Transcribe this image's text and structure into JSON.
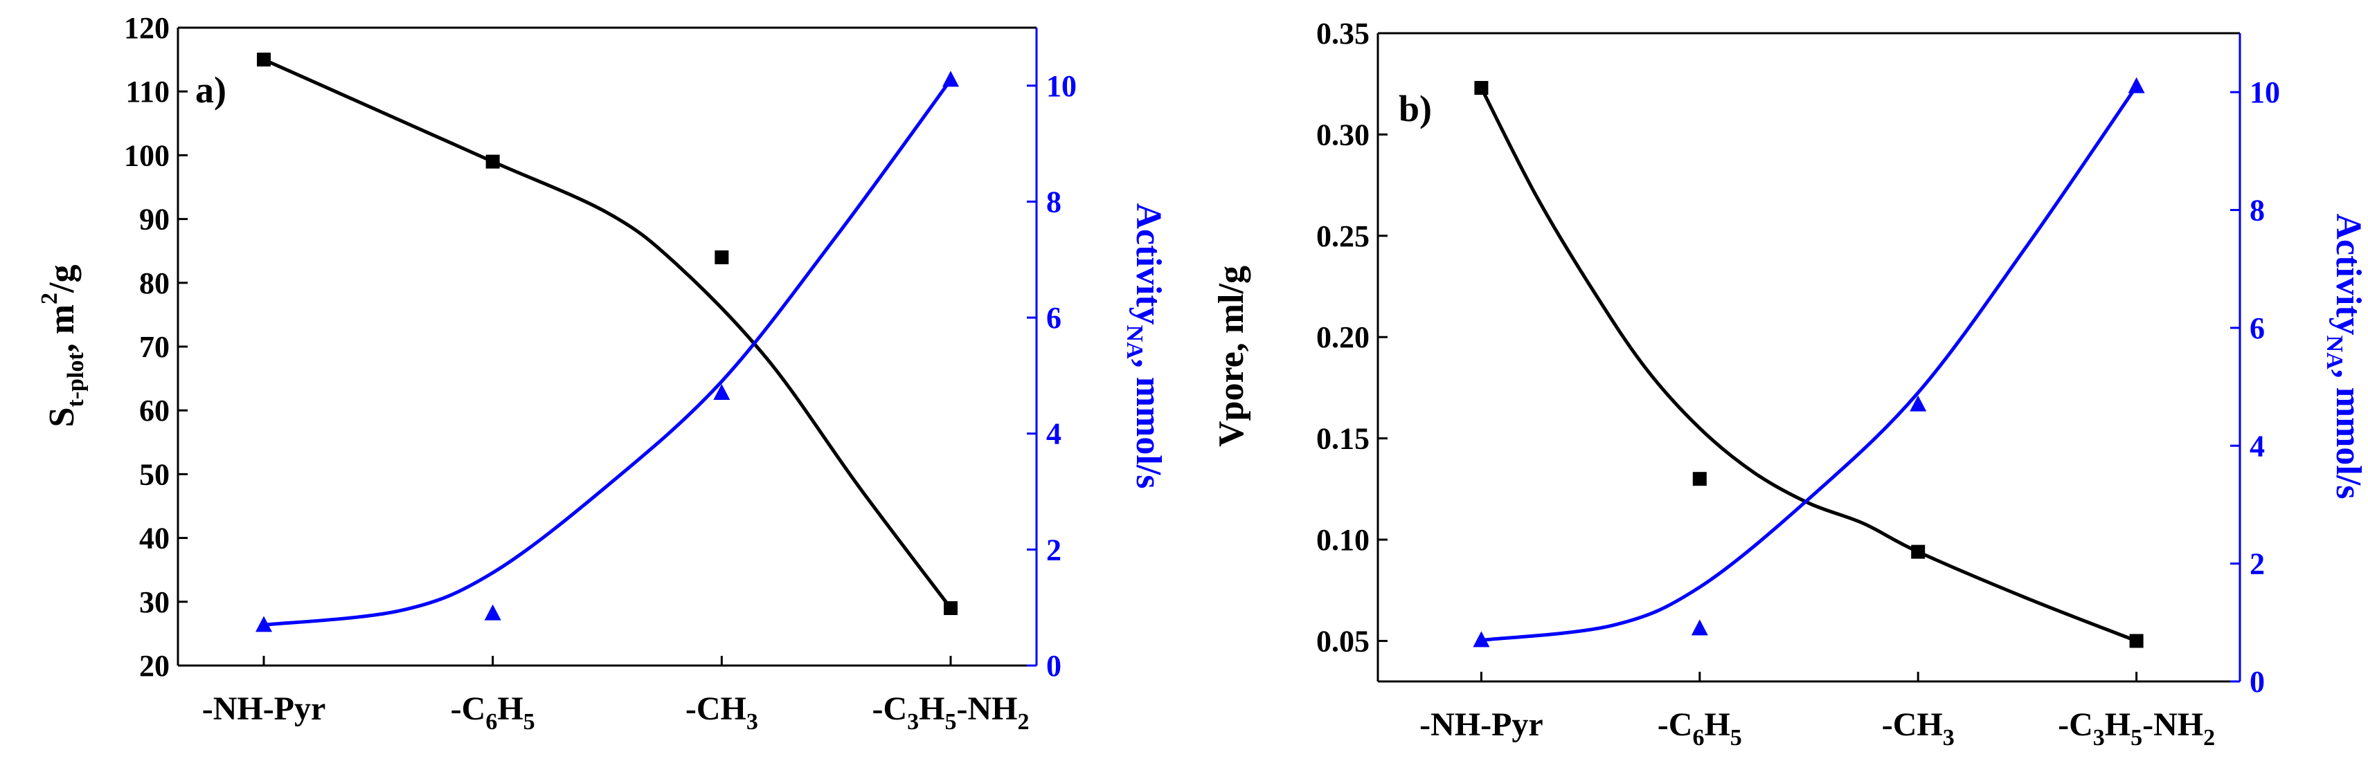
{
  "colors": {
    "left_series": "#000000",
    "right_series": "#0000ff",
    "axis": "#000000"
  },
  "chart_data": [
    {
      "type": "line",
      "panel_label": "a)",
      "categories": [
        "-NH-Pyr",
        "-C6H5",
        "-CH3",
        "-C3H5-NH2"
      ],
      "category_labels": [
        [
          {
            "t": "-NH-Pyr"
          }
        ],
        [
          {
            "t": "-C"
          },
          {
            "t": "6",
            "sub": true
          },
          {
            "t": "H"
          },
          {
            "t": "5",
            "sub": true
          }
        ],
        [
          {
            "t": "-CH"
          },
          {
            "t": "3",
            "sub": true
          }
        ],
        [
          {
            "t": "-C"
          },
          {
            "t": "3",
            "sub": true
          },
          {
            "t": "H"
          },
          {
            "t": "5",
            "sub": true
          },
          {
            "t": "-NH"
          },
          {
            "t": "2",
            "sub": true
          }
        ]
      ],
      "left_axis": {
        "label": "St-plot, m2/g",
        "label_parts": [
          {
            "t": "S"
          },
          {
            "t": "t-plot",
            "sub": true
          },
          {
            "t": ", m"
          },
          {
            "t": "2",
            "sup": true
          },
          {
            "t": "/g"
          }
        ],
        "ylim": [
          20,
          120
        ],
        "ticks": [
          20,
          30,
          40,
          50,
          60,
          70,
          80,
          90,
          100,
          110,
          120
        ],
        "tick_labels": [
          "20",
          "30",
          "40",
          "50",
          "60",
          "70",
          "80",
          "90",
          "100",
          "110",
          "120"
        ]
      },
      "right_axis": {
        "label": "ActivityNA, mmol/s",
        "label_parts": [
          {
            "t": "Activity"
          },
          {
            "t": "NA",
            "sub": true
          },
          {
            "t": ", mmol/s"
          }
        ],
        "ylim": [
          0,
          11
        ],
        "ticks": [
          0,
          2,
          4,
          6,
          8,
          10
        ],
        "tick_labels": [
          "0",
          "2",
          "4",
          "6",
          "8",
          "10"
        ]
      },
      "series": [
        {
          "name": "St-plot",
          "axis": "left",
          "marker": "square",
          "values": [
            115,
            99,
            84,
            29
          ],
          "fit": [
            [
              0,
              115
            ],
            [
              0.5,
              107
            ],
            [
              1,
              99
            ],
            [
              1.5,
              91
            ],
            [
              1.8,
              83
            ],
            [
              2.2,
              68
            ],
            [
              2.6,
              48
            ],
            [
              3,
              29
            ]
          ]
        },
        {
          "name": "ActivityNA",
          "axis": "right",
          "marker": "triangle",
          "values": [
            0.7,
            0.9,
            4.7,
            10.1
          ],
          "fit": [
            [
              0,
              0.7
            ],
            [
              0.6,
              0.95
            ],
            [
              1,
              1.6
            ],
            [
              1.5,
              3.1
            ],
            [
              2,
              4.9
            ],
            [
              2.5,
              7.4
            ],
            [
              3,
              10.1
            ]
          ]
        }
      ]
    },
    {
      "type": "line",
      "panel_label": "b)",
      "categories": [
        "-NH-Pyr",
        "-C6H5",
        "-CH3",
        "-C3H5-NH2"
      ],
      "category_labels": [
        [
          {
            "t": "-NH-Pyr"
          }
        ],
        [
          {
            "t": "-C"
          },
          {
            "t": "6",
            "sub": true
          },
          {
            "t": "H"
          },
          {
            "t": "5",
            "sub": true
          }
        ],
        [
          {
            "t": "-CH"
          },
          {
            "t": "3",
            "sub": true
          }
        ],
        [
          {
            "t": "-C"
          },
          {
            "t": "3",
            "sub": true
          },
          {
            "t": "H"
          },
          {
            "t": "5",
            "sub": true
          },
          {
            "t": "-NH"
          },
          {
            "t": "2",
            "sub": true
          }
        ]
      ],
      "left_axis": {
        "label": "Vpore, ml/g",
        "label_parts": [
          {
            "t": "Vpore, ml/g"
          }
        ],
        "ylim": [
          0.03,
          0.35
        ],
        "ticks": [
          0.05,
          0.1,
          0.15,
          0.2,
          0.25,
          0.3,
          0.35
        ],
        "tick_labels": [
          "0.05",
          "0.10",
          "0.15",
          "0.20",
          "0.25",
          "0.30",
          "0.35"
        ]
      },
      "right_axis": {
        "label": "ActivityNA, mmol/s",
        "label_parts": [
          {
            "t": "Activity"
          },
          {
            "t": "NA",
            "sub": true
          },
          {
            "t": ", mmol/s"
          }
        ],
        "ylim": [
          0,
          11
        ],
        "ticks": [
          0,
          2,
          4,
          6,
          8,
          10
        ],
        "tick_labels": [
          "0",
          "2",
          "4",
          "6",
          "8",
          "10"
        ]
      },
      "series": [
        {
          "name": "Vpore",
          "axis": "left",
          "marker": "square",
          "values": [
            0.323,
            0.13,
            0.094,
            0.05
          ],
          "fit": [
            [
              0,
              0.323
            ],
            [
              0.25,
              0.27
            ],
            [
              0.5,
              0.225
            ],
            [
              0.75,
              0.185
            ],
            [
              1,
              0.155
            ],
            [
              1.25,
              0.133
            ],
            [
              1.5,
              0.118
            ],
            [
              1.75,
              0.108
            ],
            [
              2,
              0.094
            ],
            [
              2.5,
              0.071
            ],
            [
              3,
              0.05
            ]
          ]
        },
        {
          "name": "ActivityNA",
          "axis": "right",
          "marker": "triangle",
          "values": [
            0.7,
            0.9,
            4.7,
            10.1
          ],
          "fit": [
            [
              0,
              0.7
            ],
            [
              0.6,
              0.95
            ],
            [
              1,
              1.6
            ],
            [
              1.5,
              3.1
            ],
            [
              2,
              4.9
            ],
            [
              2.5,
              7.4
            ],
            [
              3,
              10.1
            ]
          ]
        }
      ]
    }
  ]
}
